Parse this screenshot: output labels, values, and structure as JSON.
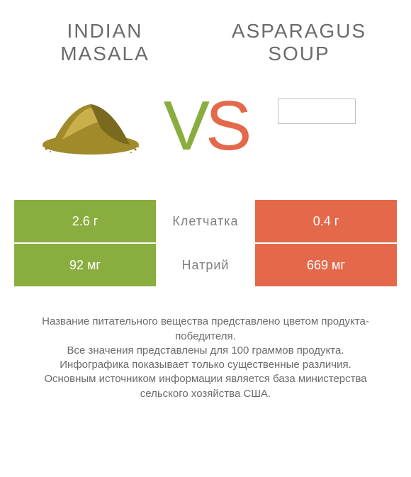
{
  "products": {
    "left": {
      "title_line1": "INDIAN",
      "title_line2": "MASALA"
    },
    "right": {
      "title_line1": "ASPARAGUS",
      "title_line2": "SOUP"
    }
  },
  "vs": {
    "v": "V",
    "s": "S"
  },
  "colors": {
    "green": "#8aad3f",
    "orange": "#e4694a",
    "mid_text": "#808080",
    "title_text": "#6b6b6b"
  },
  "rows": [
    {
      "label": "Клетчатка",
      "left_value": "2.6 г",
      "right_value": "0.4 г",
      "left_color": "#8aad3f",
      "right_color": "#e4694a"
    },
    {
      "label": "Натрий",
      "left_value": "92 мг",
      "right_value": "669 мг",
      "left_color": "#8aad3f",
      "right_color": "#e4694a"
    }
  ],
  "footnote_lines": [
    "Название питательного вещества представлено цветом продукта-победителя.",
    "Все значения представлены для 100 граммов продукта.",
    "Инфографика показывает только существенные различия.",
    "Основным источником информации является база министерства сельского хозяйства США."
  ],
  "spice_svg": {
    "main_fill": "#a08a2a",
    "highlight": "#c9b04a",
    "shadow": "#7a6a1f",
    "scatter": "#8f7a25"
  }
}
